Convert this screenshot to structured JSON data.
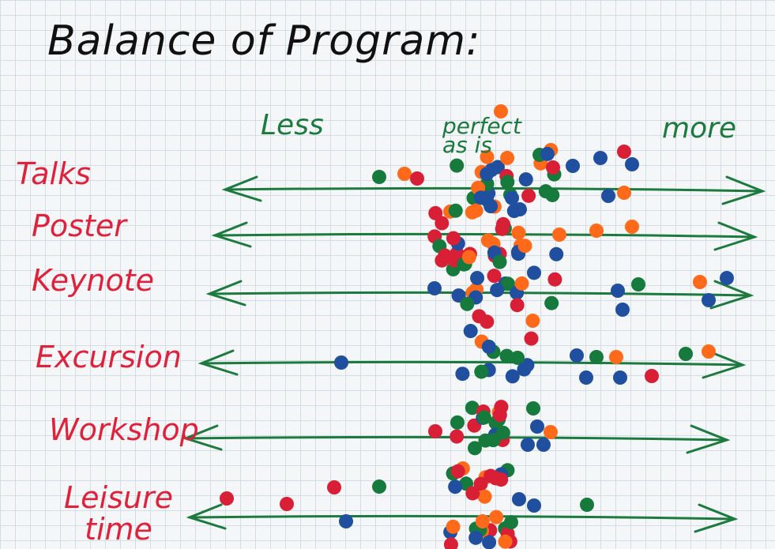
{
  "title": "Balance of Program:",
  "scale": {
    "less": "Less",
    "perfect": "perfect as is",
    "more": "more"
  },
  "rows": [
    "Talks",
    "Poster",
    "Keynote",
    "Excursion",
    "Workshop",
    "Leisure time"
  ]
}
